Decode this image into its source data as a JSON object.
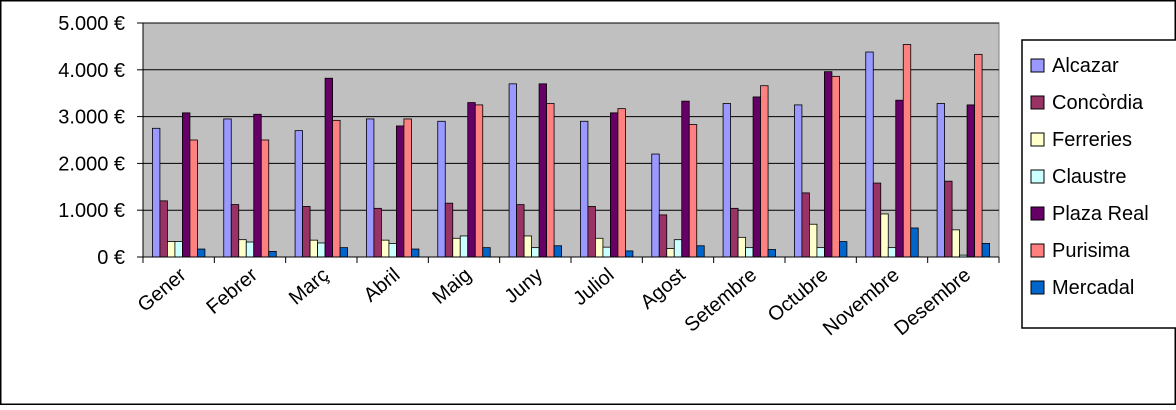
{
  "chart_data": {
    "type": "bar",
    "title": "",
    "xlabel": "",
    "ylabel": "",
    "ylim": [
      0,
      5000
    ],
    "y_ticks": [
      "0 €",
      "1.000 €",
      "2.000 €",
      "3.000 €",
      "4.000 €",
      "5.000 €"
    ],
    "y_tick_values": [
      0,
      1000,
      2000,
      3000,
      4000,
      5000
    ],
    "grid": true,
    "legend_position": "right",
    "categories": [
      "Gener",
      "Febrer",
      "Març",
      "Abril",
      "Maig",
      "Juny",
      "Juliol",
      "Agost",
      "Setembre",
      "Octubre",
      "Novembre",
      "Desembre"
    ],
    "series": [
      {
        "name": "Alcazar",
        "color": "#9999FF",
        "values": [
          2750,
          2950,
          2700,
          2950,
          2900,
          3700,
          2900,
          2200,
          3280,
          3250,
          4380,
          3280
        ]
      },
      {
        "name": "Concòrdia",
        "color": "#993366",
        "values": [
          1200,
          1120,
          1080,
          1040,
          1150,
          1120,
          1080,
          900,
          1040,
          1370,
          1580,
          1620
        ]
      },
      {
        "name": "Ferreries",
        "color": "#FFFFCC",
        "values": [
          330,
          370,
          360,
          360,
          400,
          450,
          400,
          180,
          420,
          700,
          920,
          580
        ]
      },
      {
        "name": "Claustre",
        "color": "#CCFFFF",
        "values": [
          330,
          320,
          300,
          290,
          450,
          200,
          210,
          370,
          200,
          200,
          200,
          40
        ]
      },
      {
        "name": "Plaza Real",
        "color": "#660066",
        "values": [
          3080,
          3050,
          3820,
          2800,
          3300,
          3700,
          3080,
          3330,
          3420,
          3960,
          3350,
          3250
        ]
      },
      {
        "name": "Purisima",
        "color": "#FF8080",
        "values": [
          2500,
          2500,
          2920,
          2950,
          3250,
          3280,
          3170,
          2830,
          3660,
          3860,
          4540,
          4330
        ]
      },
      {
        "name": "Mercadal",
        "color": "#0066CC",
        "values": [
          170,
          120,
          200,
          170,
          200,
          240,
          130,
          240,
          160,
          330,
          620,
          290
        ]
      }
    ]
  }
}
